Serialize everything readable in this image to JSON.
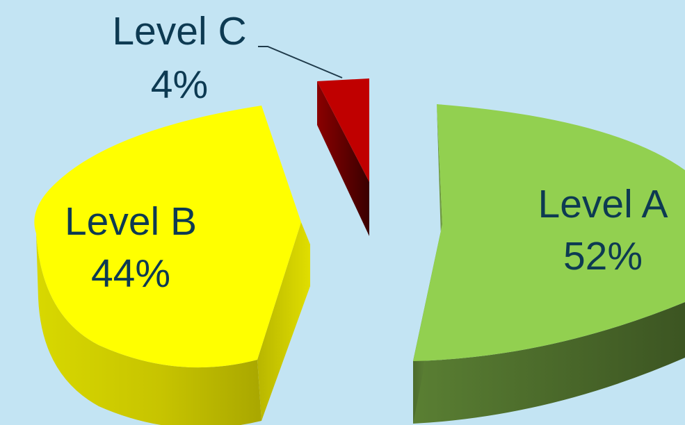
{
  "chart_data": {
    "type": "pie",
    "style": "3d-exploded",
    "title": "",
    "categories": [
      "Level A",
      "Level B",
      "Level C"
    ],
    "values": [
      52,
      44,
      4
    ],
    "value_labels": [
      "52%",
      "44%",
      "4%"
    ],
    "colors": [
      "#92d050",
      "#ffff00",
      "#c00000"
    ],
    "legend": "none",
    "labels_position": "on-slice"
  }
}
